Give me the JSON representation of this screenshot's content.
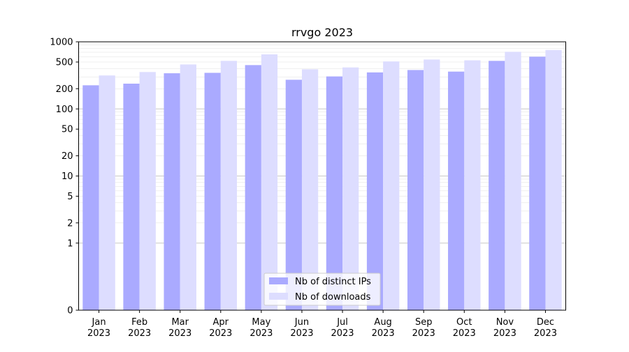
{
  "chart_data": {
    "type": "bar",
    "title": "rrvgo 2023",
    "xlabel": "",
    "ylabel": "",
    "y_scale": "symlog",
    "ylim": [
      0,
      1000
    ],
    "y_ticks": [
      0,
      1,
      2,
      5,
      10,
      20,
      50,
      100,
      200,
      500,
      1000
    ],
    "y_tick_labels": [
      "0",
      "1",
      "2",
      "5",
      "10",
      "20",
      "50",
      "100",
      "200",
      "500",
      "1000"
    ],
    "categories": [
      {
        "month": "Jan",
        "year": "2023"
      },
      {
        "month": "Feb",
        "year": "2023"
      },
      {
        "month": "Mar",
        "year": "2023"
      },
      {
        "month": "Apr",
        "year": "2023"
      },
      {
        "month": "May",
        "year": "2023"
      },
      {
        "month": "Jun",
        "year": "2023"
      },
      {
        "month": "Jul",
        "year": "2023"
      },
      {
        "month": "Aug",
        "year": "2023"
      },
      {
        "month": "Sep",
        "year": "2023"
      },
      {
        "month": "Oct",
        "year": "2023"
      },
      {
        "month": "Nov",
        "year": "2023"
      },
      {
        "month": "Dec",
        "year": "2023"
      }
    ],
    "series": [
      {
        "name": "Nb of distinct IPs",
        "color": "#aaaaff",
        "values": [
          225,
          238,
          340,
          345,
          450,
          272,
          305,
          350,
          380,
          360,
          520,
          600
        ]
      },
      {
        "name": "Nb of downloads",
        "color": "#ddddff",
        "values": [
          315,
          355,
          460,
          520,
          650,
          390,
          415,
          510,
          545,
          530,
          710,
          755
        ]
      }
    ],
    "grid": true,
    "legend_position": "bottom-center"
  }
}
